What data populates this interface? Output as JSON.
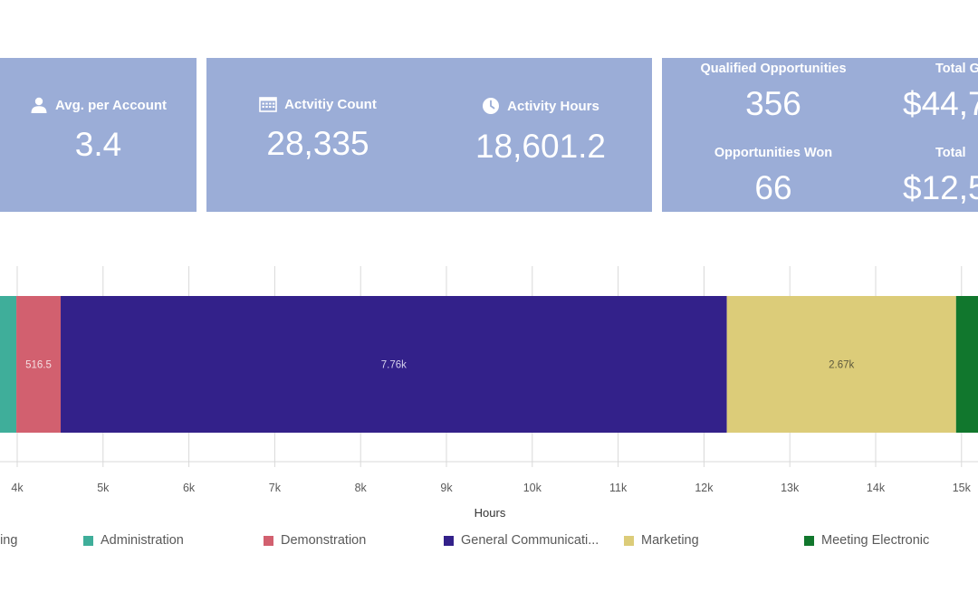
{
  "kpis": {
    "avg_per_account": {
      "label": "Avg. per Account",
      "value": "3.4",
      "icon": "user-icon"
    },
    "activity_count": {
      "label": "Actvitiy Count",
      "value": "28,335",
      "icon": "calendar-icon"
    },
    "activity_hours": {
      "label": "Activity Hours",
      "value": "18,601.2",
      "icon": "clock-icon"
    },
    "qualified_opportunities": {
      "label": "Qualified Opportunities",
      "value": "356"
    },
    "total_1": {
      "label": "Total G",
      "value": "$44,7"
    },
    "opportunities_won": {
      "label": "Opportunities Won",
      "value": "66"
    },
    "total_2": {
      "label": "Total",
      "value": "$12,5"
    }
  },
  "colors": {
    "card_bg": "#9badd7",
    "administration": "#3fae9a",
    "demonstration": "#d2606f",
    "general_communication": "#33218a",
    "marketing": "#dccc79",
    "meeting_electronic": "#11772d",
    "grid": "#d9d9d9",
    "axis_text": "#595959"
  },
  "chart_data": {
    "type": "bar",
    "orientation": "horizontal",
    "stacked": true,
    "xlabel": "Hours",
    "x_ticks": [
      "4k",
      "5k",
      "6k",
      "7k",
      "8k",
      "9k",
      "10k",
      "11k",
      "12k",
      "13k",
      "14k",
      "15k"
    ],
    "xlim": [
      3800,
      15200
    ],
    "series": [
      {
        "name": "Administration",
        "start": 3400,
        "value": 590,
        "label": ""
      },
      {
        "name": "Demonstration",
        "start": 3990,
        "value": 516.5,
        "label": "516.5"
      },
      {
        "name": "General Communicati...",
        "start": 4506.5,
        "value": 7760,
        "label": "7.76k"
      },
      {
        "name": "Marketing",
        "start": 12266.5,
        "value": 2670,
        "label": "2.67k"
      },
      {
        "name": "Meeting Electronic",
        "start": 14936.5,
        "value": 400,
        "label": ""
      }
    ]
  },
  "legend": {
    "items": [
      {
        "label": "ning",
        "color": ""
      },
      {
        "label": "Administration",
        "color": "#3fae9a"
      },
      {
        "label": "Demonstration",
        "color": "#d2606f"
      },
      {
        "label": "General Communicati...",
        "color": "#33218a"
      },
      {
        "label": "Marketing",
        "color": "#dccc79"
      },
      {
        "label": "Meeting Electronic",
        "color": "#11772d"
      }
    ]
  }
}
